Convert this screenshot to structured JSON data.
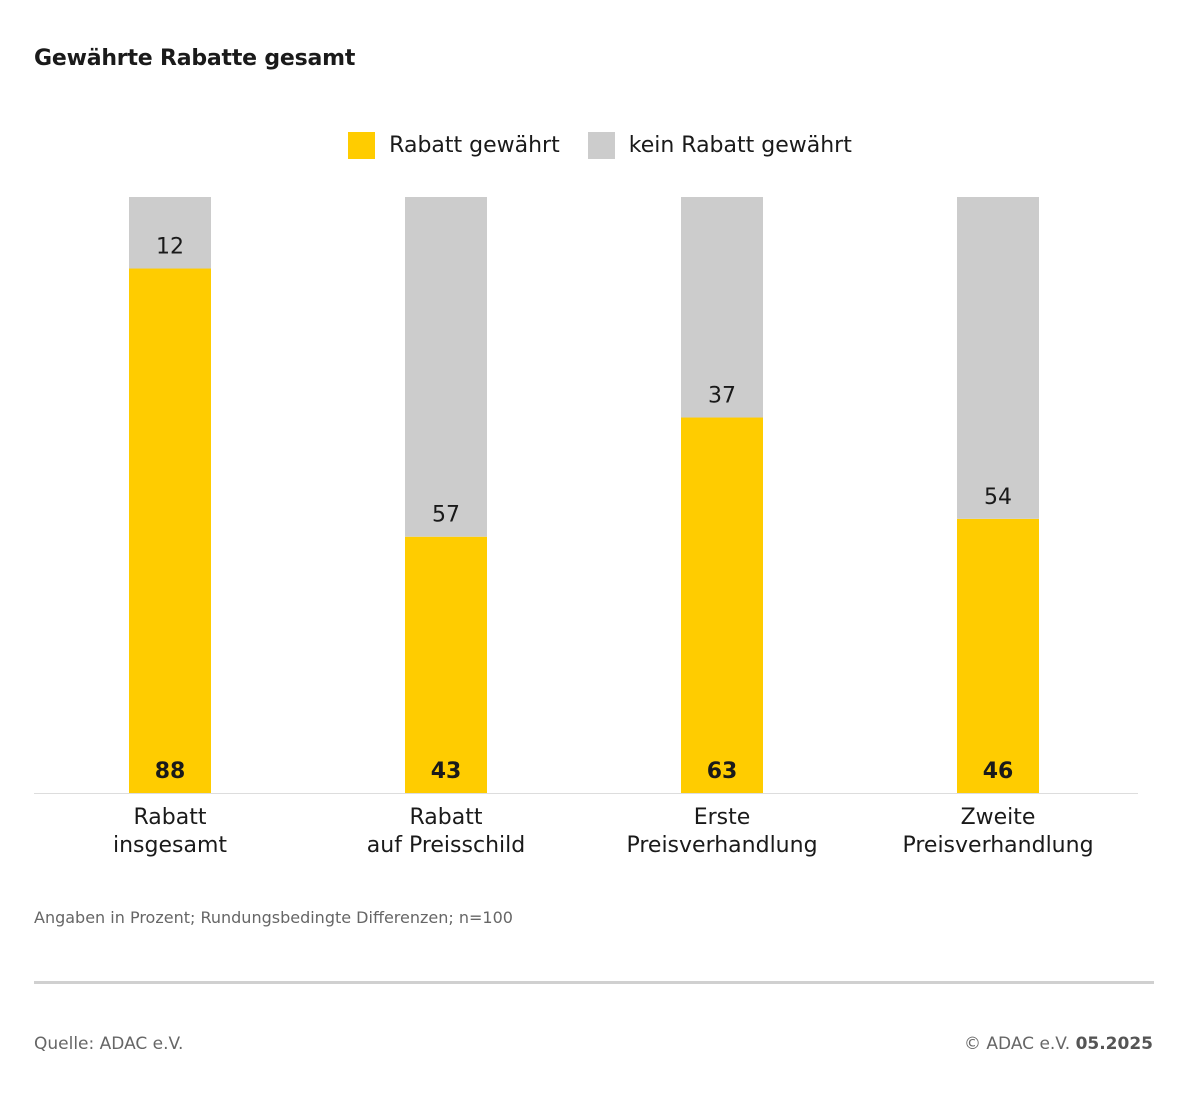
{
  "title": "Gewährte Rabatte gesamt",
  "legend": {
    "items": [
      {
        "label": "Rabatt gewährt",
        "color": "#FFCC00"
      },
      {
        "label": "kein Rabatt gewährt",
        "color": "#CCCCCC"
      }
    ]
  },
  "chart_data": {
    "type": "bar",
    "stacked": true,
    "categories": [
      [
        "Rabatt",
        "insgesamt"
      ],
      [
        "Rabatt",
        "auf Preisschild"
      ],
      [
        "Erste",
        "Preisverhandlung"
      ],
      [
        "Zweite",
        "Preisverhandlung"
      ]
    ],
    "series": [
      {
        "name": "Rabatt gewährt",
        "color": "#FFCC00",
        "values": [
          88,
          43,
          63,
          46
        ]
      },
      {
        "name": "kein Rabatt gewährt",
        "color": "#CCCCCC",
        "values": [
          12,
          57,
          37,
          54
        ]
      }
    ],
    "ylim": [
      0,
      100
    ],
    "grid": false,
    "legend_position": "top-center"
  },
  "footer": {
    "note": "Angaben in Prozent; Rundungsbedingte Differenzen; n=100",
    "source": "Quelle: ADAC e.V.",
    "copyright": "© ADAC e.V.",
    "date": "05.2025"
  }
}
